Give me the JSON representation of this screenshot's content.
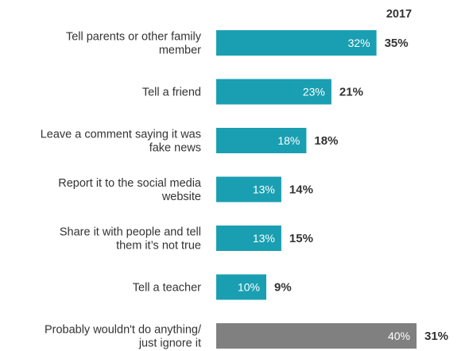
{
  "chart_data": {
    "type": "bar",
    "orientation": "horizontal",
    "column_header": "2017",
    "categories": [
      [
        "Tell parents or other family",
        "member"
      ],
      [
        "Tell a friend"
      ],
      [
        "Leave a comment saying it was",
        "fake news"
      ],
      [
        "Report it to the social media",
        "website"
      ],
      [
        "Share it with people and tell",
        "them it’s not true"
      ],
      [
        "Tell a teacher"
      ],
      [
        "Probably wouldn't do anything/",
        "just ignore it"
      ]
    ],
    "series": [
      {
        "values": [
          32,
          23,
          18,
          13,
          13,
          10,
          40
        ],
        "labels": [
          "32%",
          "23%",
          "18%",
          "13%",
          "13%",
          "10%",
          "40%"
        ],
        "colors": [
          "#1a9fb2",
          "#1a9fb2",
          "#1a9fb2",
          "#1a9fb2",
          "#1a9fb2",
          "#1a9fb2",
          "#808080"
        ]
      },
      {
        "name": "2017",
        "values": [
          35,
          21,
          18,
          14,
          15,
          9,
          31
        ],
        "labels": [
          "35%",
          "21%",
          "18%",
          "14%",
          "15%",
          "9%",
          "31%"
        ]
      }
    ],
    "xlim": [
      0,
      40
    ],
    "grid": false,
    "legend": "none"
  }
}
